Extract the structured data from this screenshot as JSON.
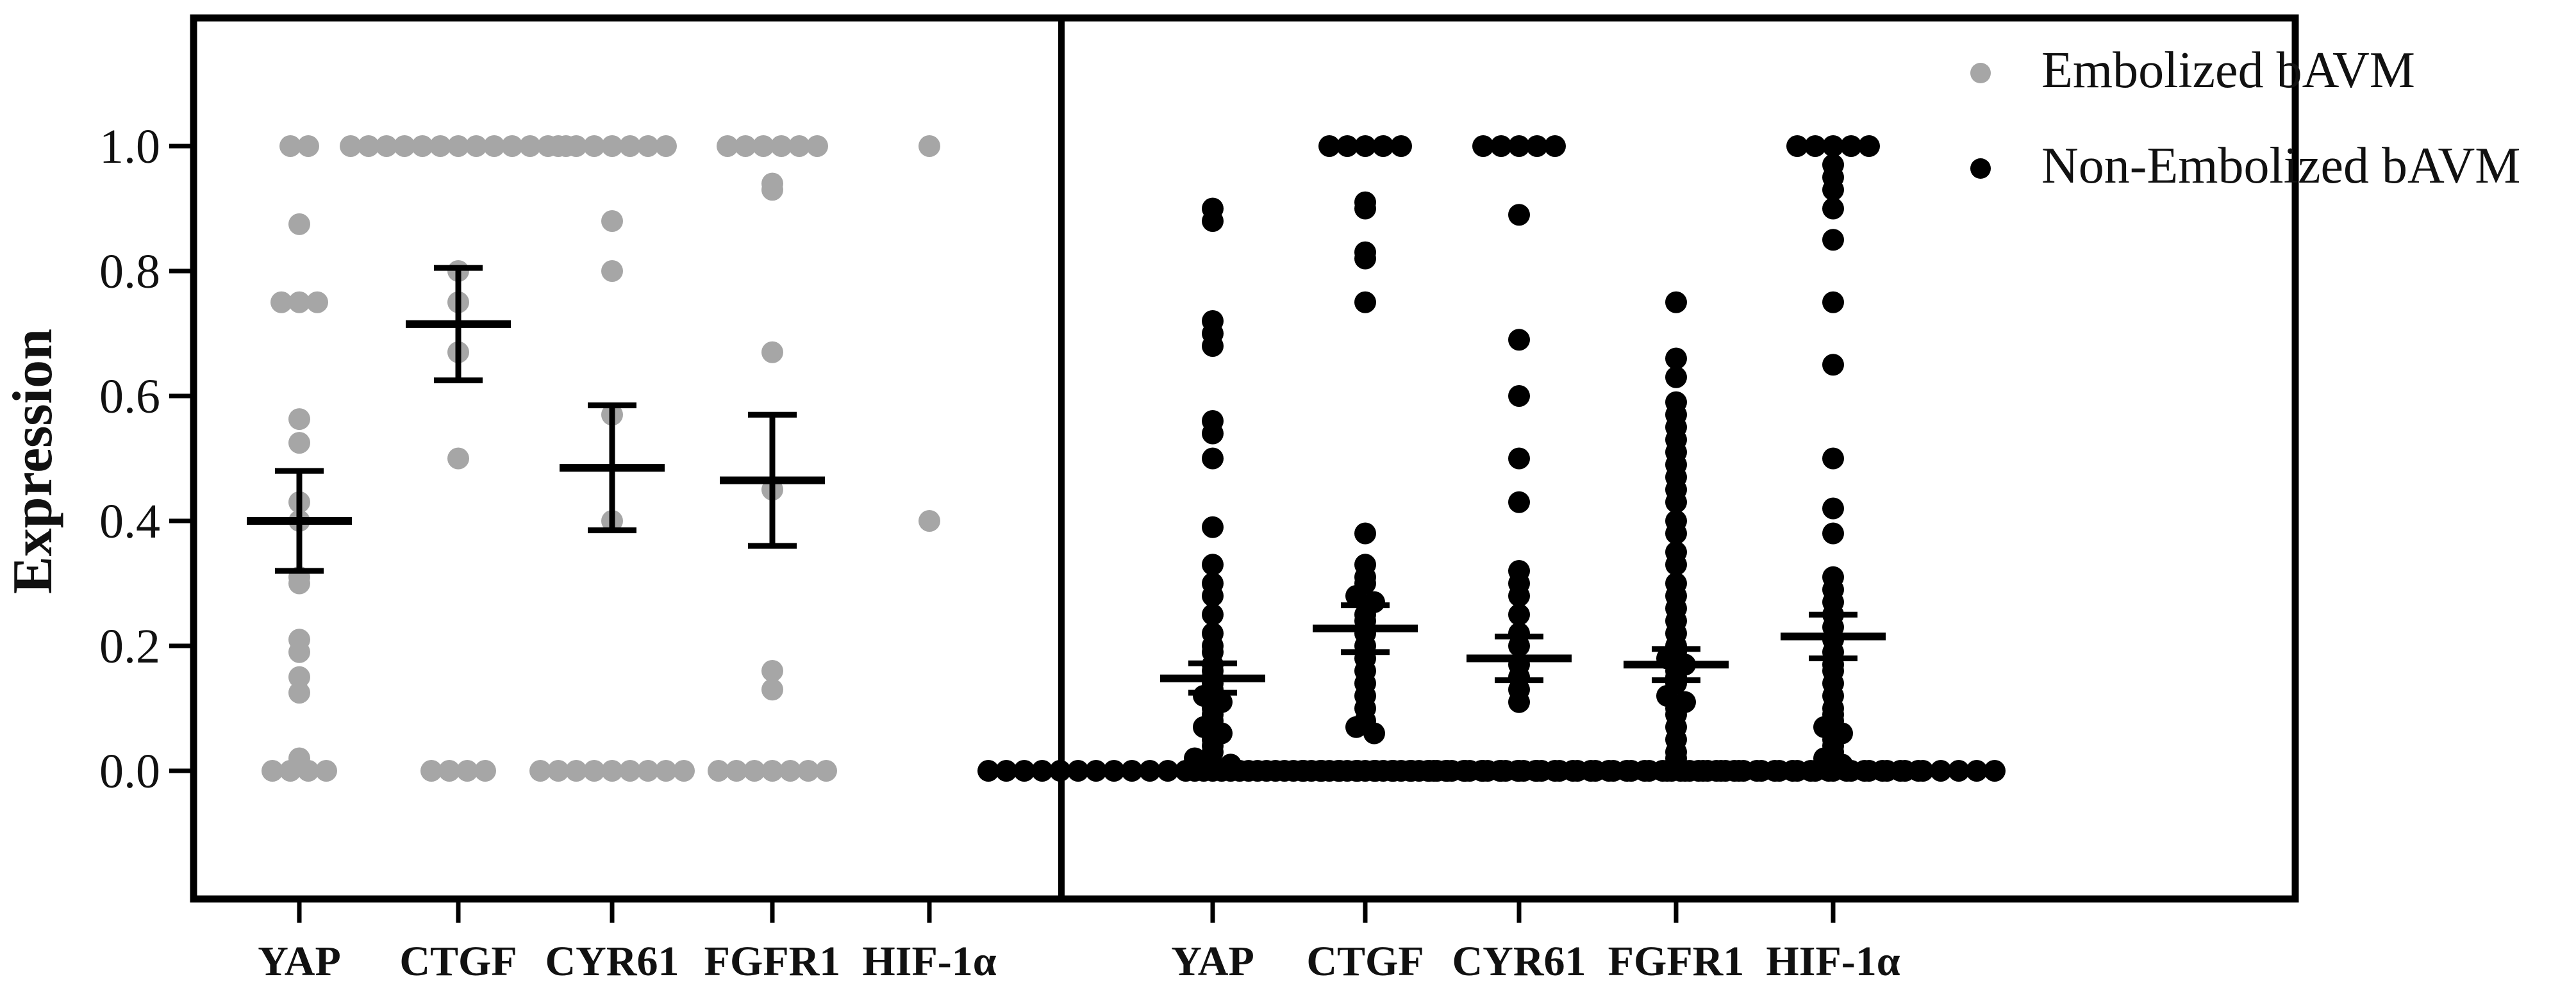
{
  "chart_data": {
    "type": "scatter",
    "ylabel": "Expression",
    "ylim": [
      -0.2,
      1.2
    ],
    "yticks": [
      "0.0",
      "0.2",
      "0.4",
      "0.6",
      "0.8",
      "1.0"
    ],
    "ytick_values": [
      0.0,
      0.2,
      0.4,
      0.6,
      0.8,
      1.0
    ],
    "categories": [
      "YAP",
      "CTGF",
      "CYR61",
      "FGFR1",
      "HIF-1α"
    ],
    "legend_position": "top-right, outside plot",
    "error_bars": "mean ± SEM",
    "series": [
      {
        "name": "Embolized bAVM",
        "color": "#a6a6a6",
        "panel": "left",
        "groups": [
          {
            "category": "YAP",
            "mean": 0.4,
            "err_low": 0.32,
            "err_high": 0.48,
            "points": [
              1.0,
              1.0,
              0.875,
              0.75,
              0.75,
              0.75,
              0.563,
              0.525,
              0.43,
              0.4,
              0.31,
              0.3,
              0.21,
              0.19,
              0.15,
              0.125,
              0.02,
              0.0,
              0.0,
              0.0,
              0.0
            ]
          },
          {
            "category": "CTGF",
            "mean": 0.715,
            "err_low": 0.625,
            "err_high": 0.805,
            "points": [
              1.0,
              1.0,
              1.0,
              1.0,
              1.0,
              1.0,
              1.0,
              1.0,
              1.0,
              1.0,
              1.0,
              1.0,
              1.0,
              0.8,
              0.75,
              0.67,
              0.5,
              0.0,
              0.0,
              0.0,
              0.0
            ]
          },
          {
            "category": "CYR61",
            "mean": 0.485,
            "err_low": 0.385,
            "err_high": 0.585,
            "points": [
              1.0,
              1.0,
              1.0,
              1.0,
              1.0,
              1.0,
              1.0,
              0.88,
              0.8,
              0.57,
              0.4,
              0.0,
              0.0,
              0.0,
              0.0,
              0.0,
              0.0,
              0.0,
              0.0,
              0.0
            ]
          },
          {
            "category": "FGFR1",
            "mean": 0.465,
            "err_low": 0.36,
            "err_high": 0.57,
            "points": [
              1.0,
              1.0,
              1.0,
              1.0,
              1.0,
              1.0,
              0.94,
              0.93,
              0.67,
              0.45,
              0.16,
              0.13,
              0.0,
              0.0,
              0.0,
              0.0,
              0.0,
              0.0,
              0.0
            ]
          },
          {
            "category": "HIF-1α",
            "mean": null,
            "err_low": null,
            "err_high": null,
            "points": [
              1.0,
              0.4
            ]
          }
        ]
      },
      {
        "name": "Non-Embolized bAVM",
        "color": "#000000",
        "panel": "right",
        "groups": [
          {
            "category": "YAP",
            "mean": 0.148,
            "err_low": 0.125,
            "err_high": 0.172,
            "points": [
              0.9,
              0.88,
              0.72,
              0.7,
              0.68,
              0.56,
              0.54,
              0.5,
              0.39,
              0.33,
              0.3,
              0.28,
              0.25,
              0.22,
              0.2,
              0.19,
              0.17,
              0.16,
              0.15,
              0.14,
              0.13,
              0.12,
              0.11,
              0.1,
              0.09,
              0.08,
              0.07,
              0.06,
              0.05,
              0.04,
              0.03,
              0.02,
              0.01,
              0.01,
              0.0,
              0.0,
              0.0,
              0.0,
              0.0,
              0.0,
              0.0,
              0.0,
              0.0,
              0.0,
              0.0,
              0.0,
              0.0,
              0.0,
              0.0,
              0.0,
              0.0,
              0.0,
              0.0,
              0.0,
              0.0,
              0.0,
              0.0,
              0.0,
              0.0,
              0.0
            ]
          },
          {
            "category": "CTGF",
            "mean": 0.228,
            "err_low": 0.19,
            "err_high": 0.265,
            "points": [
              1.0,
              1.0,
              1.0,
              1.0,
              1.0,
              0.91,
              0.9,
              0.83,
              0.82,
              0.75,
              0.38,
              0.33,
              0.31,
              0.3,
              0.28,
              0.27,
              0.25,
              0.24,
              0.22,
              0.2,
              0.18,
              0.16,
              0.14,
              0.12,
              0.1,
              0.08,
              0.07,
              0.06,
              0.0,
              0.0,
              0.0,
              0.0,
              0.0,
              0.0,
              0.0,
              0.0,
              0.0,
              0.0,
              0.0,
              0.0,
              0.0,
              0.0,
              0.0,
              0.0,
              0.0,
              0.0,
              0.0,
              0.0
            ]
          },
          {
            "category": "CYR61",
            "mean": 0.18,
            "err_low": 0.145,
            "err_high": 0.215,
            "points": [
              1.0,
              1.0,
              1.0,
              1.0,
              1.0,
              0.89,
              0.69,
              0.6,
              0.5,
              0.43,
              0.32,
              0.3,
              0.28,
              0.25,
              0.22,
              0.2,
              0.17,
              0.15,
              0.13,
              0.11,
              0.0,
              0.0,
              0.0,
              0.0,
              0.0,
              0.0,
              0.0,
              0.0,
              0.0,
              0.0,
              0.0,
              0.0,
              0.0,
              0.0,
              0.0,
              0.0,
              0.0,
              0.0,
              0.0,
              0.0,
              0.0,
              0.0,
              0.0,
              0.0,
              0.0
            ]
          },
          {
            "category": "FGFR1",
            "mean": 0.17,
            "err_low": 0.145,
            "err_high": 0.195,
            "points": [
              0.75,
              0.66,
              0.63,
              0.59,
              0.57,
              0.55,
              0.53,
              0.51,
              0.49,
              0.47,
              0.45,
              0.43,
              0.4,
              0.38,
              0.35,
              0.33,
              0.3,
              0.28,
              0.26,
              0.24,
              0.22,
              0.2,
              0.19,
              0.18,
              0.17,
              0.16,
              0.15,
              0.14,
              0.12,
              0.11,
              0.1,
              0.09,
              0.07,
              0.05,
              0.03,
              0.02,
              0.0,
              0.0,
              0.0,
              0.0,
              0.0,
              0.0,
              0.0,
              0.0,
              0.0,
              0.0,
              0.0,
              0.0,
              0.0,
              0.0,
              0.0,
              0.0,
              0.0,
              0.0,
              0.0,
              0.0,
              0.0,
              0.0,
              0.0,
              0.0,
              0.0,
              0.0,
              0.0,
              0.0
            ]
          },
          {
            "category": "HIF-1α",
            "mean": 0.215,
            "err_low": 0.18,
            "err_high": 0.25,
            "points": [
              1.0,
              1.0,
              1.0,
              1.0,
              1.0,
              0.97,
              0.95,
              0.93,
              0.9,
              0.85,
              0.75,
              0.65,
              0.5,
              0.42,
              0.38,
              0.31,
              0.29,
              0.27,
              0.25,
              0.23,
              0.21,
              0.19,
              0.17,
              0.16,
              0.14,
              0.12,
              0.1,
              0.09,
              0.08,
              0.07,
              0.06,
              0.05,
              0.04,
              0.03,
              0.02,
              0.01,
              0.0,
              0.0,
              0.0,
              0.0,
              0.0,
              0.0,
              0.0,
              0.0,
              0.0,
              0.0,
              0.0,
              0.0,
              0.0,
              0.0,
              0.0,
              0.0,
              0.0,
              0.0,
              0.0
            ]
          }
        ]
      }
    ]
  }
}
